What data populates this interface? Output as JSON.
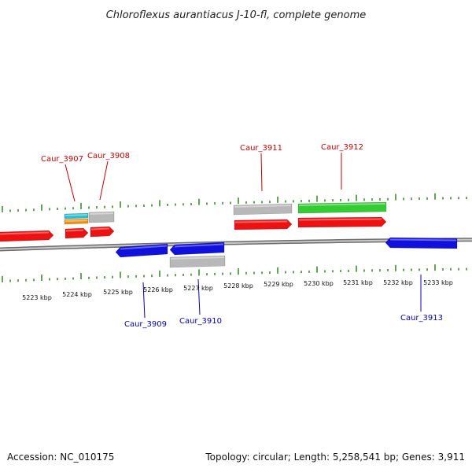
{
  "title": "Chloroflexus aurantiacus J-10-fl, complete genome",
  "footer": {
    "accession": "Accession: NC_010175",
    "summary": "Topology: circular; Length: 5,258,541 bp; Genes: 3,911"
  },
  "colors": {
    "forward_gene": "#ee1111",
    "reverse_gene": "#1111dd",
    "tick": "#2a8a1a",
    "backbone": "#888888",
    "trna": "#22c0d0",
    "rrna": "#f09010",
    "misc_feature": "#b8b8b8",
    "highlight": "#33cc33",
    "forward_label": "#cc0000",
    "reverse_label": "#0000bb"
  },
  "scale": {
    "unit": "kbp",
    "labels": [
      "5223 kbp",
      "5224 kbp",
      "5225 kbp",
      "5226 kbp",
      "5227 kbp",
      "5228 kbp",
      "5229 kbp",
      "5230 kbp",
      "5231 kbp",
      "5232 kbp",
      "5233 kbp"
    ]
  },
  "gene_labels": {
    "forward": [
      "Caur_3907",
      "Caur_3908",
      "Caur_3911",
      "Caur_3912"
    ],
    "reverse": [
      "Caur_3909",
      "Caur_3910",
      "Caur_3913"
    ]
  }
}
